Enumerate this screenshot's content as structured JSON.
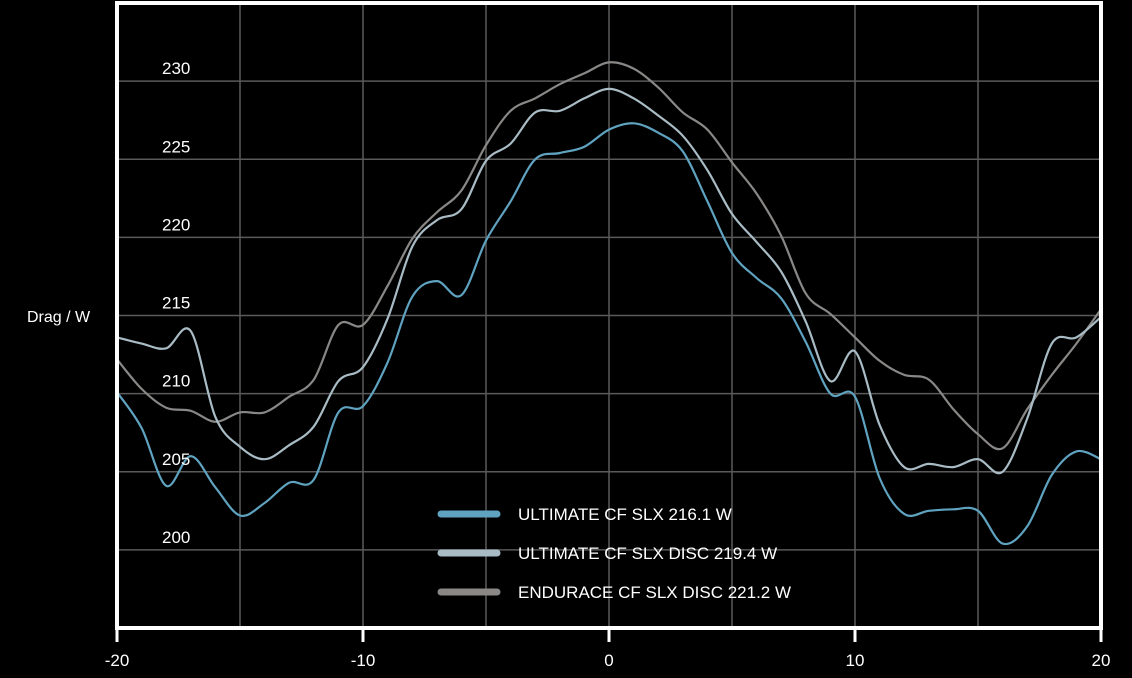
{
  "chart_data": {
    "type": "line",
    "ylabel": "Drag / W",
    "xlim": [
      -20,
      20
    ],
    "ylim": [
      195,
      235
    ],
    "x_ticks": [
      "-20",
      "-10",
      "0",
      "10",
      "20"
    ],
    "y_ticks": [
      "200",
      "205",
      "210",
      "215",
      "220",
      "225",
      "230"
    ],
    "grid": true,
    "legend_position": "bottom-center",
    "series": [
      {
        "name": "ULTIMATE CF SLX 216.1 W",
        "color": "#5fa3c0",
        "x": [
          -20,
          -19,
          -18,
          -17,
          -16,
          -15,
          -14,
          -13,
          -12,
          -11,
          -10,
          -9,
          -8,
          -7,
          -6,
          -5,
          -4,
          -3,
          -2,
          -1,
          0,
          1,
          2,
          3,
          4,
          5,
          6,
          7,
          8,
          9,
          10,
          11,
          12,
          13,
          14,
          15,
          16,
          17,
          18,
          19,
          20
        ],
        "y": [
          210.1,
          207.8,
          204.1,
          206.0,
          204.0,
          202.2,
          203.0,
          204.3,
          204.5,
          208.8,
          209.2,
          212.0,
          216.2,
          217.2,
          216.3,
          219.8,
          222.3,
          225.0,
          225.4,
          225.8,
          226.9,
          227.3,
          226.7,
          225.5,
          222.3,
          219.0,
          217.4,
          216.1,
          213.3,
          210.0,
          209.8,
          204.6,
          202.3,
          202.5,
          202.6,
          202.5,
          200.4,
          201.5,
          204.8,
          206.3,
          205.8
        ]
      },
      {
        "name": "ULTIMATE CF SLX DISC 219.4 W",
        "color": "#a9bcc5",
        "x": [
          -20,
          -19,
          -18,
          -17,
          -16,
          -15,
          -14,
          -13,
          -12,
          -11,
          -10,
          -9,
          -8,
          -7,
          -6,
          -5,
          -4,
          -3,
          -2,
          -1,
          0,
          1,
          2,
          3,
          4,
          5,
          6,
          7,
          8,
          9,
          10,
          11,
          12,
          13,
          14,
          15,
          16,
          17,
          18,
          19,
          20
        ],
        "y": [
          213.6,
          213.2,
          212.9,
          214.0,
          208.5,
          206.6,
          205.8,
          206.7,
          207.9,
          210.8,
          211.7,
          214.8,
          219.4,
          221.1,
          221.8,
          224.9,
          226.0,
          228.0,
          228.1,
          228.9,
          229.5,
          228.9,
          227.8,
          226.5,
          224.3,
          221.5,
          219.7,
          217.8,
          214.6,
          210.8,
          212.7,
          208.0,
          205.3,
          205.5,
          205.3,
          205.8,
          205.0,
          208.4,
          213.2,
          213.6,
          214.9
        ]
      },
      {
        "name": "ENDURACE CF SLX DISC 221.2 W",
        "color": "#8a8886",
        "x": [
          -20,
          -19,
          -18,
          -17,
          -16,
          -15,
          -14,
          -13,
          -12,
          -11,
          -10,
          -9,
          -8,
          -7,
          -6,
          -5,
          -4,
          -3,
          -2,
          -1,
          0,
          1,
          2,
          3,
          4,
          5,
          6,
          7,
          8,
          9,
          10,
          11,
          12,
          13,
          14,
          15,
          16,
          17,
          18,
          19,
          20
        ],
        "y": [
          212.2,
          210.3,
          209.1,
          208.9,
          208.2,
          208.8,
          208.8,
          209.8,
          210.9,
          214.4,
          214.4,
          216.9,
          219.9,
          221.6,
          223.0,
          225.9,
          228.1,
          228.9,
          229.8,
          230.5,
          231.2,
          230.8,
          229.6,
          228.0,
          226.9,
          224.8,
          222.8,
          220.1,
          216.4,
          215.1,
          213.6,
          212.1,
          211.2,
          210.9,
          209.0,
          207.4,
          206.5,
          209.0,
          211.2,
          213.2,
          215.4
        ]
      }
    ]
  }
}
